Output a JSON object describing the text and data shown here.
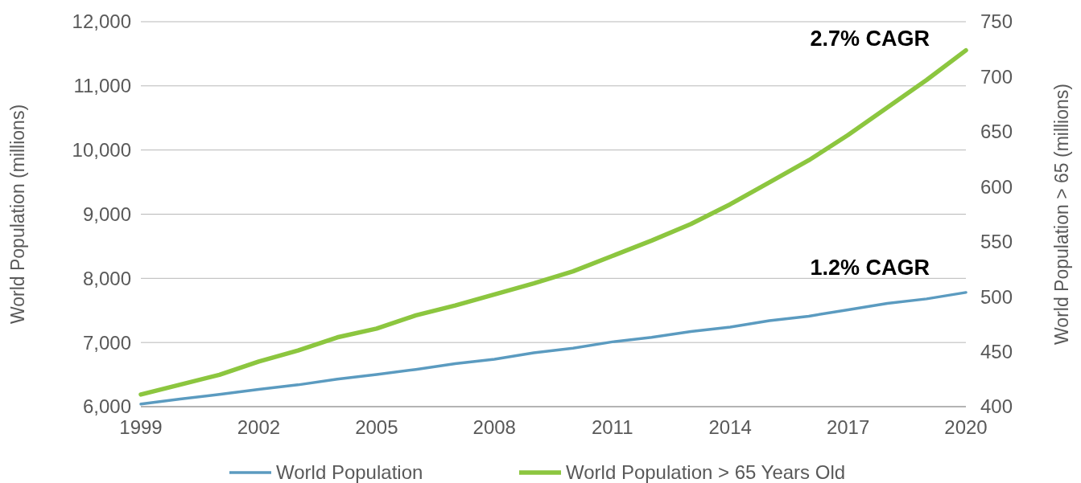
{
  "chart_data": {
    "type": "line",
    "ylabel": "World Population (millions)",
    "y2label": "World Population > 65 (millions)",
    "x": [
      1999,
      2000,
      2001,
      2002,
      2003,
      2004,
      2005,
      2006,
      2007,
      2008,
      2009,
      2010,
      2011,
      2012,
      2013,
      2014,
      2015,
      2016,
      2017,
      2018,
      2019,
      2020
    ],
    "series": [
      {
        "name": "World Population",
        "color": "#5b9bc0",
        "values": [
          6040,
          6120,
          6190,
          6270,
          6340,
          6430,
          6500,
          6580,
          6670,
          6740,
          6840,
          6910,
          7010,
          7080,
          7170,
          7240,
          7340,
          7410,
          7510,
          7610,
          7680,
          7780
        ]
      },
      {
        "name": "World Population > 65 Years Old",
        "color": "#8cc63f",
        "axis": "y2",
        "values": [
          411,
          420,
          429,
          441,
          451,
          463,
          471,
          483,
          492,
          502,
          512,
          523,
          537,
          551,
          566,
          584,
          604,
          624,
          647,
          672,
          697,
          724
        ]
      }
    ],
    "xlim": [
      1999,
      2020
    ],
    "xticks": [
      1999,
      2002,
      2005,
      2008,
      2011,
      2014,
      2017,
      2020
    ],
    "ylim": [
      6000,
      12000
    ],
    "yticks": [
      {
        "value": 6000,
        "label": "6,000"
      },
      {
        "value": 7000,
        "label": "7,000"
      },
      {
        "value": 8000,
        "label": "8,000"
      },
      {
        "value": 9000,
        "label": "9,000"
      },
      {
        "value": 10000,
        "label": "10,000"
      },
      {
        "value": 11000,
        "label": "11,000"
      },
      {
        "value": 12000,
        "label": "12,000"
      }
    ],
    "y2lim": [
      400,
      750
    ],
    "y2ticks": [
      400,
      450,
      500,
      550,
      600,
      650,
      700,
      750
    ],
    "annotations": [
      "2.7% CAGR",
      "1.2% CAGR"
    ],
    "grid": "y",
    "legend": "bottom"
  }
}
